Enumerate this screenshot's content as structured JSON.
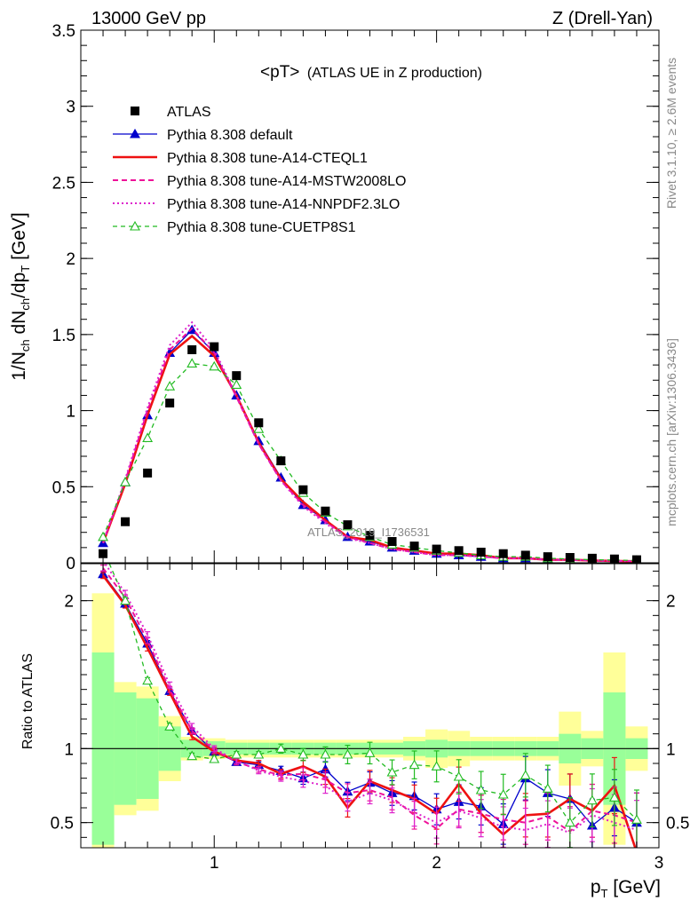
{
  "header": {
    "left": "13000 GeV pp",
    "right": "Z (Drell-Yan)"
  },
  "side_text": {
    "rivet": "Rivet 3.1.10, ≥ 2.6M events",
    "mcplots": "mcplots.cern.ch [arXiv:1306.3436]"
  },
  "colors": {
    "data": "#000000",
    "default": "#0000cc",
    "cteql1": "#ee1111",
    "mstw": "#ee1199",
    "nnpdf": "#dd22cc",
    "cuetp8s1": "#22bb22",
    "band_inner": "#99ff99",
    "band_outer": "#ffff99"
  },
  "chart_data": [
    {
      "type": "scatter",
      "title": "<pT> (ATLAS UE in Z production)",
      "title_main": "<pT>",
      "title_sub": "(ATLAS UE in Z production)",
      "ylabel": "1/N_ch dN_ch/dp_T [GeV]",
      "ylabel_parts": {
        "a": "1/N",
        "b": "ch",
        "c": " dN",
        "d": "ch",
        "e": "/dp",
        "f": "T",
        "g": " [GeV]"
      },
      "xlim": [
        0.4,
        3.0
      ],
      "ylim": [
        0,
        3.5
      ],
      "yticks": [
        "0",
        "0.5",
        "1",
        "1.5",
        "2",
        "2.5",
        "3",
        "3.5"
      ],
      "watermark": "ATLAS_2019_I1736531",
      "legend_position": "top-left",
      "x": [
        0.5,
        0.6,
        0.7,
        0.8,
        0.9,
        1.0,
        1.1,
        1.2,
        1.3,
        1.4,
        1.5,
        1.6,
        1.7,
        1.8,
        1.9,
        2.0,
        2.1,
        2.2,
        2.3,
        2.4,
        2.5,
        2.6,
        2.7,
        2.8,
        2.9
      ],
      "series": [
        {
          "name": "ATLAS",
          "key": "data",
          "style": "square",
          "values": [
            0.06,
            0.27,
            0.59,
            1.05,
            1.4,
            1.42,
            1.23,
            0.92,
            0.67,
            0.48,
            0.34,
            0.25,
            0.18,
            0.14,
            0.11,
            0.09,
            0.08,
            0.07,
            0.06,
            0.05,
            0.04,
            0.035,
            0.03,
            0.025,
            0.02
          ]
        },
        {
          "name": "Pythia 8.308 default",
          "key": "default",
          "style": "line-triangle",
          "values": [
            0.13,
            0.53,
            0.97,
            1.38,
            1.53,
            1.38,
            1.1,
            0.8,
            0.56,
            0.38,
            0.28,
            0.17,
            0.14,
            0.1,
            0.08,
            0.06,
            0.05,
            0.04,
            0.03,
            0.03,
            0.02,
            0.02,
            0.015,
            0.012,
            0.01
          ]
        },
        {
          "name": "Pythia 8.308 tune-A14-CTEQL1",
          "key": "cteql1",
          "style": "solid-thick",
          "values": [
            0.13,
            0.52,
            0.97,
            1.37,
            1.49,
            1.36,
            1.1,
            0.79,
            0.55,
            0.4,
            0.28,
            0.17,
            0.15,
            0.1,
            0.08,
            0.06,
            0.06,
            0.05,
            0.03,
            0.03,
            0.02,
            0.02,
            0.015,
            0.012,
            0.01
          ]
        },
        {
          "name": "Pythia 8.308 tune-A14-MSTW2008LO",
          "key": "mstw",
          "style": "dashed",
          "values": [
            0.13,
            0.54,
            1.0,
            1.4,
            1.54,
            1.38,
            1.09,
            0.78,
            0.54,
            0.38,
            0.27,
            0.17,
            0.13,
            0.09,
            0.07,
            0.05,
            0.05,
            0.04,
            0.03,
            0.03,
            0.02,
            0.02,
            0.015,
            0.012,
            0.01
          ]
        },
        {
          "name": "Pythia 8.308 tune-A14-NNPDF2.3LO",
          "key": "nnpdf",
          "style": "dotted",
          "values": [
            0.13,
            0.55,
            1.02,
            1.43,
            1.58,
            1.4,
            1.1,
            0.78,
            0.54,
            0.37,
            0.26,
            0.16,
            0.13,
            0.09,
            0.07,
            0.05,
            0.05,
            0.04,
            0.03,
            0.03,
            0.02,
            0.02,
            0.015,
            0.012,
            0.01
          ]
        },
        {
          "name": "Pythia 8.308 tune-CUETP8S1",
          "key": "cuetp8s1",
          "style": "dashed-open-triangle",
          "values": [
            0.17,
            0.53,
            0.82,
            1.16,
            1.31,
            1.29,
            1.17,
            0.88,
            0.67,
            0.46,
            0.33,
            0.24,
            0.17,
            0.12,
            0.1,
            0.08,
            0.065,
            0.05,
            0.04,
            0.04,
            0.03,
            0.025,
            0.02,
            0.018,
            0.015
          ]
        }
      ]
    },
    {
      "type": "line",
      "ylabel": "Ratio to ATLAS",
      "xlabel": "p_T [GeV]",
      "xlabel_parts": {
        "a": "p",
        "b": "T",
        "c": " [GeV]"
      },
      "xlim": [
        0.4,
        3.0
      ],
      "ylim": [
        0.33,
        2.25
      ],
      "xticks": [
        "1",
        "2",
        "3"
      ],
      "yticks": [
        "0.5",
        "1",
        "2"
      ],
      "x": [
        0.5,
        0.6,
        0.7,
        0.8,
        0.9,
        1.0,
        1.1,
        1.2,
        1.3,
        1.4,
        1.5,
        1.6,
        1.7,
        1.8,
        1.9,
        2.0,
        2.1,
        2.2,
        2.3,
        2.4,
        2.5,
        2.6,
        2.7,
        2.8,
        2.9
      ],
      "band_inner": [
        0.65,
        0.38,
        0.34,
        0.15,
        0.06,
        0.05,
        0.04,
        0.04,
        0.04,
        0.04,
        0.04,
        0.04,
        0.04,
        0.04,
        0.05,
        0.06,
        0.05,
        0.05,
        0.05,
        0.05,
        0.05,
        0.1,
        0.07,
        0.38,
        0.07
      ],
      "band_outer": [
        1.05,
        0.45,
        0.42,
        0.22,
        0.08,
        0.07,
        0.06,
        0.06,
        0.06,
        0.06,
        0.06,
        0.06,
        0.06,
        0.06,
        0.08,
        0.13,
        0.12,
        0.08,
        0.08,
        0.08,
        0.08,
        0.25,
        0.12,
        0.65,
        0.15
      ],
      "series": [
        {
          "name": "Pythia 8.308 default",
          "key": "default",
          "values": [
            2.18,
            1.98,
            1.71,
            1.39,
            1.12,
            0.98,
            0.91,
            0.89,
            0.85,
            0.8,
            0.86,
            0.71,
            0.77,
            0.7,
            0.68,
            0.59,
            0.64,
            0.61,
            0.49,
            0.8,
            0.7,
            0.66,
            0.48,
            0.6,
            0.5
          ]
        },
        {
          "name": "Pythia 8.308 tune-A14-CTEQL1",
          "key": "cteql1",
          "values": [
            2.17,
            1.97,
            1.68,
            1.38,
            1.08,
            0.98,
            0.92,
            0.9,
            0.83,
            0.88,
            0.81,
            0.6,
            0.78,
            0.72,
            0.66,
            0.56,
            0.76,
            0.56,
            0.42,
            0.55,
            0.56,
            0.66,
            0.58,
            0.75,
            0.3
          ]
        },
        {
          "name": "Pythia 8.308 tune-A14-MSTW2008LO",
          "key": "mstw",
          "values": [
            2.22,
            2.02,
            1.73,
            1.4,
            1.12,
            0.99,
            0.91,
            0.86,
            0.82,
            0.83,
            0.79,
            0.7,
            0.72,
            0.67,
            0.55,
            0.46,
            0.59,
            0.56,
            0.52,
            0.5,
            0.54,
            0.44,
            0.58,
            0.55,
            0.5
          ]
        },
        {
          "name": "Pythia 8.308 tune-A14-NNPDF2.3LO",
          "key": "nnpdf",
          "values": [
            2.27,
            2.05,
            1.77,
            1.43,
            1.15,
            1.0,
            0.92,
            0.85,
            0.81,
            0.78,
            0.75,
            0.64,
            0.7,
            0.65,
            0.57,
            0.5,
            0.58,
            0.53,
            0.47,
            0.45,
            0.49,
            0.43,
            0.55,
            0.5,
            0.45
          ]
        },
        {
          "name": "Pythia 8.308 tune-CUETP8S1",
          "key": "cuetp8s1",
          "values": [
            2.35,
            2.0,
            1.46,
            1.15,
            0.95,
            0.93,
            0.96,
            0.96,
            1.0,
            0.96,
            0.96,
            0.96,
            0.97,
            0.84,
            0.89,
            0.88,
            0.81,
            0.72,
            0.69,
            0.82,
            0.73,
            0.5,
            0.65,
            0.67,
            0.52
          ]
        }
      ]
    }
  ]
}
